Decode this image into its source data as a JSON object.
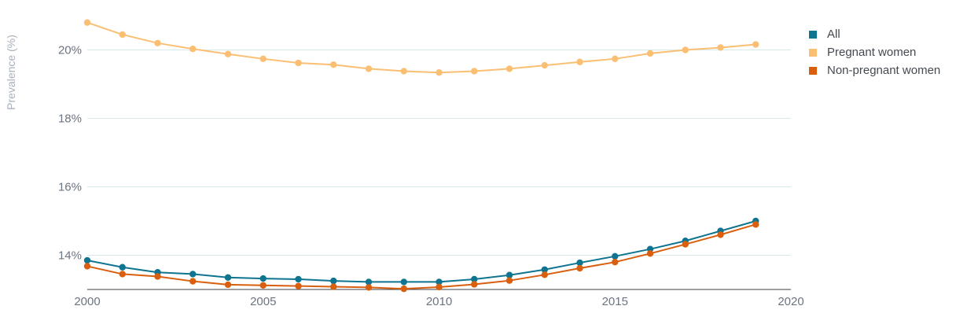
{
  "chart_data": {
    "type": "line",
    "title": "",
    "xlabel": "",
    "ylabel": "Prevalence (%)",
    "xlim": [
      2000,
      2020
    ],
    "ylim": [
      13,
      21
    ],
    "x_ticks": [
      "2000",
      "2005",
      "2010",
      "2015",
      "2020"
    ],
    "y_ticks": [
      "14%",
      "16%",
      "18%",
      "20%"
    ],
    "grid": "horizontal",
    "legend_position": "top-right",
    "x": [
      2000,
      2001,
      2002,
      2003,
      2004,
      2005,
      2006,
      2007,
      2008,
      2009,
      2010,
      2011,
      2012,
      2013,
      2014,
      2015,
      2016,
      2017,
      2018,
      2019
    ],
    "series": [
      {
        "name": "All",
        "color": "#0e7490",
        "values": [
          13.85,
          13.65,
          13.5,
          13.45,
          13.35,
          13.32,
          13.3,
          13.25,
          13.22,
          13.22,
          13.22,
          13.3,
          13.42,
          13.58,
          13.78,
          13.97,
          14.18,
          14.42,
          14.71,
          15.0
        ]
      },
      {
        "name": "Pregnant women",
        "color": "#fbbf74",
        "values": [
          20.8,
          20.45,
          20.2,
          20.03,
          19.88,
          19.74,
          19.62,
          19.57,
          19.45,
          19.38,
          19.34,
          19.38,
          19.45,
          19.55,
          19.65,
          19.74,
          19.9,
          20.0,
          20.07,
          20.16
        ]
      },
      {
        "name": "Non-pregnant women",
        "color": "#d95f0e",
        "values": [
          13.68,
          13.45,
          13.38,
          13.24,
          13.14,
          13.12,
          13.1,
          13.08,
          13.06,
          13.02,
          13.07,
          13.15,
          13.26,
          13.43,
          13.62,
          13.8,
          14.05,
          14.32,
          14.6,
          14.9
        ]
      }
    ]
  }
}
